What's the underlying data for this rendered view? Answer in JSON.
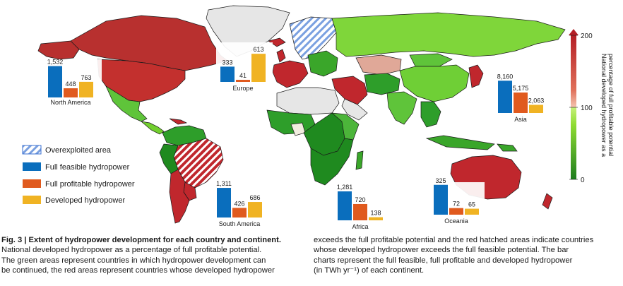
{
  "legend": {
    "items": [
      {
        "label": "Overexploited area",
        "kind": "hatch"
      },
      {
        "label": "Full feasible hydropower",
        "color": "#0a6ebd"
      },
      {
        "label": "Full profitable hydropower",
        "color": "#e05a1e"
      },
      {
        "label": "Developed hydropower",
        "color": "#f0b323"
      }
    ]
  },
  "colorbar": {
    "title": "National developed hydropower as a percentage of full profitable potential",
    "ticks": [
      "200",
      "100",
      "0"
    ],
    "colors": {
      "high": "#c0272d",
      "mid_high": "#f2b7a0",
      "mid": "#9be33d",
      "low": "#1f8a1f"
    }
  },
  "chart_data": [
    {
      "type": "bar",
      "title": "North America",
      "categories": [
        "Full feasible hydropower",
        "Full profitable hydropower",
        "Developed hydropower"
      ],
      "values": [
        1532,
        448,
        763
      ],
      "labels": [
        "1,532",
        "448",
        "763"
      ]
    },
    {
      "type": "bar",
      "title": "Europe",
      "categories": [
        "Full feasible hydropower",
        "Full profitable hydropower",
        "Developed hydropower"
      ],
      "values": [
        333,
        41,
        613
      ],
      "labels": [
        "333",
        "41",
        "613"
      ]
    },
    {
      "type": "bar",
      "title": "South America",
      "categories": [
        "Full feasible hydropower",
        "Full profitable hydropower",
        "Developed hydropower"
      ],
      "values": [
        1311,
        426,
        686
      ],
      "labels": [
        "1,311",
        "426",
        "686"
      ]
    },
    {
      "type": "bar",
      "title": "Africa",
      "categories": [
        "Full feasible hydropower",
        "Full profitable hydropower",
        "Developed hydropower"
      ],
      "values": [
        1281,
        720,
        138
      ],
      "labels": [
        "1,281",
        "720",
        "138"
      ]
    },
    {
      "type": "bar",
      "title": "Oceania",
      "categories": [
        "Full feasible hydropower",
        "Full profitable hydropower",
        "Developed hydropower"
      ],
      "values": [
        325,
        72,
        65
      ],
      "labels": [
        "325",
        "72",
        "65"
      ]
    },
    {
      "type": "bar",
      "title": "Asia",
      "categories": [
        "Full feasible hydropower",
        "Full profitable hydropower",
        "Developed hydropower"
      ],
      "values": [
        8160,
        5175,
        2063
      ],
      "labels": [
        "8,160",
        "5,175",
        "2,063"
      ]
    }
  ],
  "caption": {
    "title": "Fig. 3 | Extent of hydropower development for each country and continent.",
    "left_lines": [
      "National developed hydropower as a percentage of full profitable potential.",
      "The green areas represent countries in which hydropower development can",
      "be continued, the red areas represent countries whose developed hydropower"
    ],
    "right_lines": [
      "exceeds the full profitable potential and the red hatched areas indicate countries",
      "whose developed hydropower exceeds the full feasible potential. The bar",
      "charts represent the full feasible, full profitable and developed hydropower",
      "(in TWh yr⁻¹) of each continent."
    ]
  }
}
